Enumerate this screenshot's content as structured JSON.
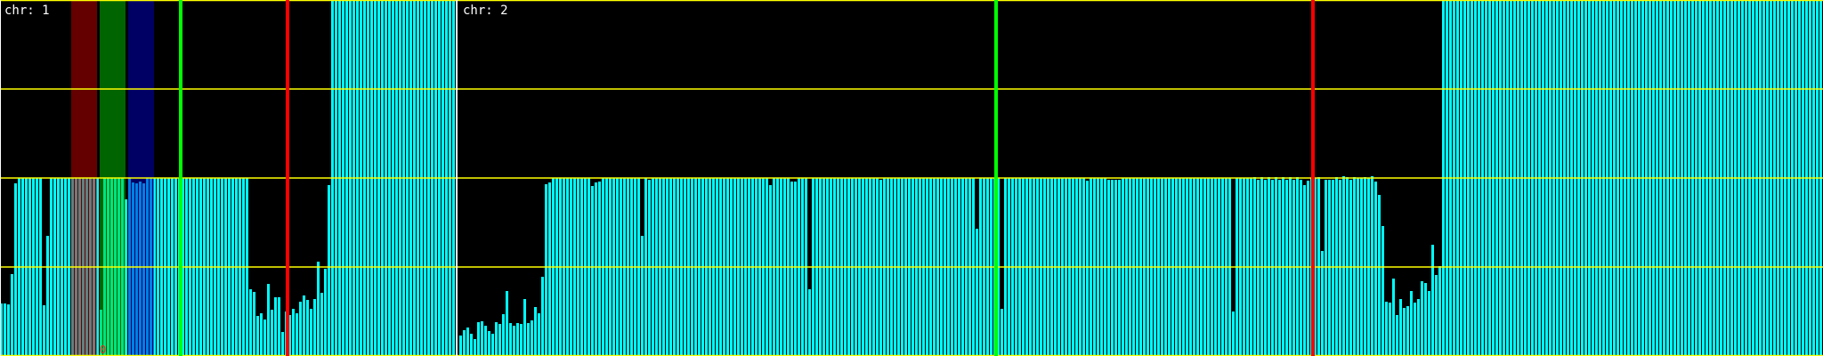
{
  "chart_data": {
    "type": "bar",
    "ylim": [
      0,
      4
    ],
    "gridlines_y": [
      0,
      1,
      2,
      3,
      4
    ],
    "grid": true,
    "colors": {
      "background": "#000000",
      "bar": "#00ffff",
      "grid": "#ffff00",
      "separator": "#ffffff",
      "band_red": "#c80000",
      "band_green": "#00c800",
      "band_blue": "#0000c8",
      "marker_green": "#00ff00",
      "marker_red": "#ff0000"
    },
    "chromosomes": [
      {
        "label": "chr: 1",
        "values": [
          0.59,
          0.59,
          0.58,
          0.92,
          1.94,
          2,
          2,
          2,
          2,
          2,
          2,
          2,
          0.57,
          1.35,
          2,
          2,
          2,
          2,
          2,
          2,
          2,
          2,
          2,
          2,
          2,
          2,
          2,
          2,
          0.52,
          2,
          2,
          2,
          2,
          2,
          2,
          1.76,
          2,
          1.95,
          1.94,
          1.96,
          1.94,
          2,
          2,
          2,
          2,
          2,
          2,
          2,
          2,
          2,
          2,
          2,
          2,
          2,
          2,
          2,
          2,
          2,
          2,
          2,
          2,
          2,
          2,
          2,
          2,
          2,
          2,
          2,
          2,
          2,
          0.75,
          0.72,
          0.45,
          0.48,
          0.41,
          0.81,
          0.52,
          0.66,
          0.66,
          0.27,
          0.5,
          0.46,
          0.53,
          0.48,
          0.61,
          0.68,
          0.63,
          0.53,
          0.64,
          1.06,
          0.71,
          0.98,
          1.92,
          4,
          4,
          4,
          4,
          4,
          4,
          4,
          4,
          4,
          4,
          4,
          4,
          4,
          4,
          4,
          4,
          4,
          4,
          4,
          4,
          4,
          4,
          4,
          4,
          4,
          4,
          4,
          4,
          4,
          4,
          4,
          4,
          4,
          4,
          4
        ],
        "bands": [
          {
            "color": "band_red",
            "bins": [
              20,
              27
            ]
          },
          {
            "color": "band_green",
            "bins": [
              28,
              35
            ]
          },
          {
            "color": "band_blue",
            "bins": [
              36,
              43
            ]
          }
        ],
        "markers": [
          {
            "color": "marker_green",
            "bin": 50
          },
          {
            "color": "marker_red",
            "bin": 80
          }
        ],
        "annotation": {
          "text": "0",
          "bin": 28
        }
      },
      {
        "label": "chr: 2",
        "values": [
          0.23,
          0.29,
          0.32,
          0.25,
          0.19,
          0.38,
          0.39,
          0.34,
          0.28,
          0.25,
          0.38,
          0.36,
          0.47,
          0.73,
          0.37,
          0.34,
          0.37,
          0.36,
          0.64,
          0.37,
          0.4,
          0.55,
          0.48,
          0.89,
          1.93,
          1.95,
          2,
          2,
          2,
          2,
          2,
          2,
          2,
          2,
          2,
          2,
          2,
          1.91,
          1.95,
          1.96,
          2,
          2,
          2,
          2,
          2,
          2,
          2,
          2,
          2,
          2,
          2,
          1.35,
          2,
          1.98,
          2,
          2,
          2,
          2,
          2,
          2,
          2,
          2,
          2,
          2,
          2,
          2,
          2,
          2,
          2,
          2,
          2,
          2,
          2,
          2,
          2,
          2,
          2,
          2,
          2,
          2,
          2,
          2,
          2,
          2,
          2,
          2,
          2,
          1.92,
          2,
          2,
          2,
          2,
          2,
          1.96,
          1.96,
          2,
          2,
          2,
          0.75,
          2,
          2,
          2,
          2,
          2,
          2,
          2,
          2,
          2,
          2,
          2,
          2,
          2,
          2,
          2,
          2,
          2,
          2,
          2,
          1.98,
          2,
          2,
          2,
          2,
          2,
          2,
          2,
          2,
          2,
          2,
          2,
          2,
          2,
          2,
          2,
          2,
          2,
          2,
          2,
          2,
          2,
          2,
          2,
          2,
          2,
          2,
          1.43,
          2,
          2,
          2,
          2,
          2,
          2,
          0.53,
          2,
          2,
          2,
          2,
          2,
          2,
          2,
          2,
          2,
          2,
          2,
          2,
          2,
          2,
          2,
          2,
          2,
          2,
          2,
          2,
          2,
          2,
          2,
          1.97,
          2,
          2,
          2,
          2,
          2,
          1.98,
          1.98,
          1.98,
          1.98,
          2,
          2,
          2,
          2,
          2,
          2,
          2,
          2,
          2,
          2,
          2,
          2,
          2,
          2,
          2,
          2,
          2,
          2,
          2,
          2,
          2,
          2,
          2,
          2,
          2,
          2,
          2,
          2,
          2,
          2,
          2,
          0.5,
          2,
          2,
          2,
          2,
          2,
          2.01,
          1.98,
          2.01,
          1.98,
          2.01,
          1.98,
          2.01,
          1.98,
          2.01,
          1.98,
          2.01,
          1.98,
          2.01,
          1.98,
          1.92,
          1.97,
          2,
          2,
          2.01,
          1.18,
          1.98,
          1.98,
          1.98,
          2.01,
          1.98,
          2.02,
          2.01,
          1.98,
          2.01,
          2,
          2,
          2.01,
          2,
          2.02,
          1.96,
          1.81,
          1.46,
          0.61,
          0.6,
          0.87,
          0.46,
          0.64,
          0.54,
          0.56,
          0.73,
          0.6,
          0.64,
          0.84,
          0.82,
          0.73,
          1.25,
          0.91,
          1.01,
          4,
          4,
          4,
          4,
          4,
          4,
          4,
          4,
          4,
          4,
          4,
          4,
          4,
          4,
          4,
          4,
          4,
          4,
          4,
          4,
          4,
          4,
          4,
          4,
          4,
          4,
          4,
          4,
          4,
          4,
          4,
          4,
          4,
          4,
          4,
          4,
          4,
          4,
          4,
          4,
          4,
          4,
          4,
          4,
          4,
          4,
          4,
          4,
          4,
          4,
          4,
          4,
          4,
          4,
          4,
          4,
          4,
          4,
          4,
          4,
          4,
          4,
          4,
          4,
          4,
          4,
          4,
          4,
          4,
          4,
          4,
          4,
          4,
          4,
          4,
          4,
          4,
          4,
          4,
          4,
          4,
          4,
          4,
          4,
          4,
          4,
          4,
          4,
          4,
          4,
          4,
          4,
          4,
          4,
          4,
          4,
          4,
          4,
          4,
          4,
          4,
          4,
          4,
          4,
          4,
          4,
          4
        ],
        "bands": [],
        "markers": [
          {
            "color": "marker_green",
            "bin": 150
          },
          {
            "color": "marker_red",
            "bin": 239
          }
        ]
      }
    ]
  }
}
